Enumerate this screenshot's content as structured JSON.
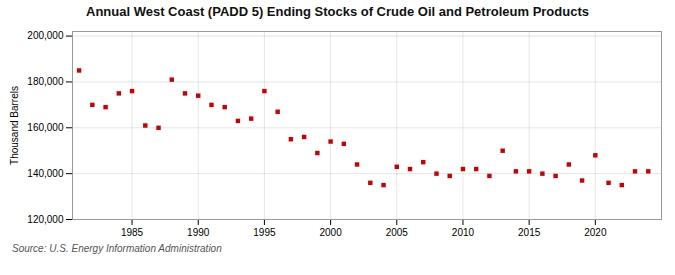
{
  "chart_data": {
    "type": "scatter",
    "title": "Annual West Coast (PADD 5) Ending Stocks of Crude Oil and Petroleum Products",
    "ylabel": "Thousand Barrels",
    "source": "Source: U.S. Energy Information Administration",
    "color": "#cc0000",
    "marker": "square",
    "grid": true,
    "x": [
      1981,
      1982,
      1983,
      1984,
      1985,
      1986,
      1987,
      1988,
      1989,
      1990,
      1991,
      1992,
      1993,
      1994,
      1995,
      1996,
      1997,
      1998,
      1999,
      2000,
      2001,
      2002,
      2003,
      2004,
      2005,
      2006,
      2007,
      2008,
      2009,
      2010,
      2011,
      2012,
      2013,
      2014,
      2015,
      2016,
      2017,
      2018,
      2019,
      2020,
      2021,
      2022,
      2023,
      2024
    ],
    "values": [
      185000,
      170000,
      169000,
      175000,
      176000,
      161000,
      160000,
      181000,
      175000,
      174000,
      170000,
      169000,
      163000,
      164000,
      176000,
      167000,
      155000,
      156000,
      149000,
      154000,
      153000,
      144000,
      136000,
      135000,
      143000,
      142000,
      145000,
      140000,
      139000,
      142000,
      142000,
      139000,
      150000,
      141000,
      141000,
      140000,
      139000,
      144000,
      137000,
      148000,
      136000,
      135000,
      141000,
      141000
    ],
    "xlim": [
      1980.5,
      2025
    ],
    "ylim": [
      120000,
      202000
    ],
    "xticks": [
      1985,
      1990,
      1995,
      2000,
      2005,
      2010,
      2015,
      2020
    ],
    "yticks": [
      {
        "value": 120000,
        "label": "120,000"
      },
      {
        "value": 140000,
        "label": "140,000"
      },
      {
        "value": 160000,
        "label": "160,000"
      },
      {
        "value": 180000,
        "label": "180,000"
      },
      {
        "value": 200000,
        "label": "200,000"
      }
    ]
  }
}
